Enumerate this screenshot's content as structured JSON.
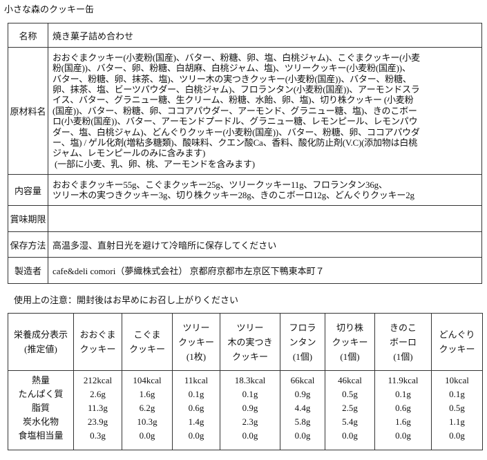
{
  "title": "小さな森のクッキー缶",
  "info": {
    "name_label": "名称",
    "name": "焼き菓子詰め合わせ",
    "ingredients_label": "原材料名",
    "ingredients": [
      "おおぐまクッキー(小麦粉(国産)、バター、粉糖、卵、塩、白桃ジャム)、こぐまクッキー(小麦",
      "粉(国産))、バター、卵、粉糖、白胡麻、白桃ジャム、塩)、ツリークッキー(小麦粉(国産))、",
      "バター、粉糖、卵、抹茶、塩)、ツリー木の実つきクッキー(小麦粉(国産))、バター、粉糖、",
      "卵、抹茶、塩、ビーツパウダー、白桃ジャム)、フロランタン(小麦粉(国産))、アーモンドスラ",
      "イス、バター、グラニュー糖、生クリーム、粉糖、水飴、卵、塩)、切り株クッキー (小麦粉",
      "(国産))、バター、粉糖、卵、ココアパウダー、アーモンド、グラニュー糖、塩)、きのこボー",
      "ロ(小麦粉(国産))、バター、アーモンドプードル、グラニュー糖、レモンピール、レモンパウ",
      "ダー、塩、白桃ジャム)、どんぐりクッキー(小麦粉(国産))、バター、粉糖、卵、ココアパウダ",
      "ー、塩) / ゲル化剤(増粘多糖類)、酸味料、クエン酸Ca、香料、酸化防止剤(V.C)(添加物は白桃",
      "ジャム、レモンピールのみに含みます)",
      " (一部に小麦、乳、卵、桃、アーモンドを含みます)"
    ],
    "contents_label": "内容量",
    "contents": [
      "おおぐまクッキー55g、こぐまクッキー25g、ツリークッキー11g、フロランタン36g、",
      "ツリー木の実つきクッキー3g、切り株クッキー28g、きのこボーロ12g、どんぐりクッキー2g"
    ],
    "expiry_label": "賞味期限",
    "expiry": "",
    "storage_label": "保存方法",
    "storage": "高温多湿、直射日光を避けて冷暗所に保存してください",
    "maker_label": "製造者",
    "maker": "cafe&deli comori（夢織株式会社） 京都府京都市左京区下鴨東本町７"
  },
  "note": "使用上の注意：開封後はお早めにお召し上がりください",
  "nutrition": {
    "header": [
      [
        "栄養成分表示",
        "(推定値)"
      ],
      [
        "おおぐま",
        "クッキー"
      ],
      [
        "こぐま",
        "クッキー"
      ],
      [
        "ツリー",
        "クッキー",
        "(1枚)"
      ],
      [
        "ツリー",
        "木の実つき",
        "クッキー"
      ],
      [
        "フロラ",
        "ンタン",
        "(1個)"
      ],
      [
        "切り株",
        "クッキー",
        "(1個)"
      ],
      [
        "きのこ",
        "ボーロ",
        "(1個)"
      ],
      [
        "どんぐり",
        "クッキー"
      ]
    ],
    "rows": [
      [
        "熱量",
        "212kcal",
        "104kcal",
        "11kcal",
        "18.3kcal",
        "66kcal",
        "46kcal",
        "11.9kcal",
        "10kcal"
      ],
      [
        "たんぱく質",
        "2.6g",
        "1.6g",
        "0.1g",
        "0.1g",
        "0.9g",
        "0.5g",
        "0.1g",
        "0.1g"
      ],
      [
        "脂質",
        "11.3g",
        "6.2g",
        "0.6g",
        "0.9g",
        "4.4g",
        "2.5g",
        "0.6g",
        "0.5g"
      ],
      [
        "炭水化物",
        "23.9g",
        "10.3g",
        "1.4g",
        "2.3g",
        "5.8g",
        "5.4g",
        "1.6g",
        "1.1g"
      ],
      [
        "食塩相当量",
        "0.3g",
        "0.0g",
        "0.0g",
        "0.0g",
        "0.0g",
        "0.0g",
        "0.0g",
        "0.0g"
      ]
    ]
  }
}
